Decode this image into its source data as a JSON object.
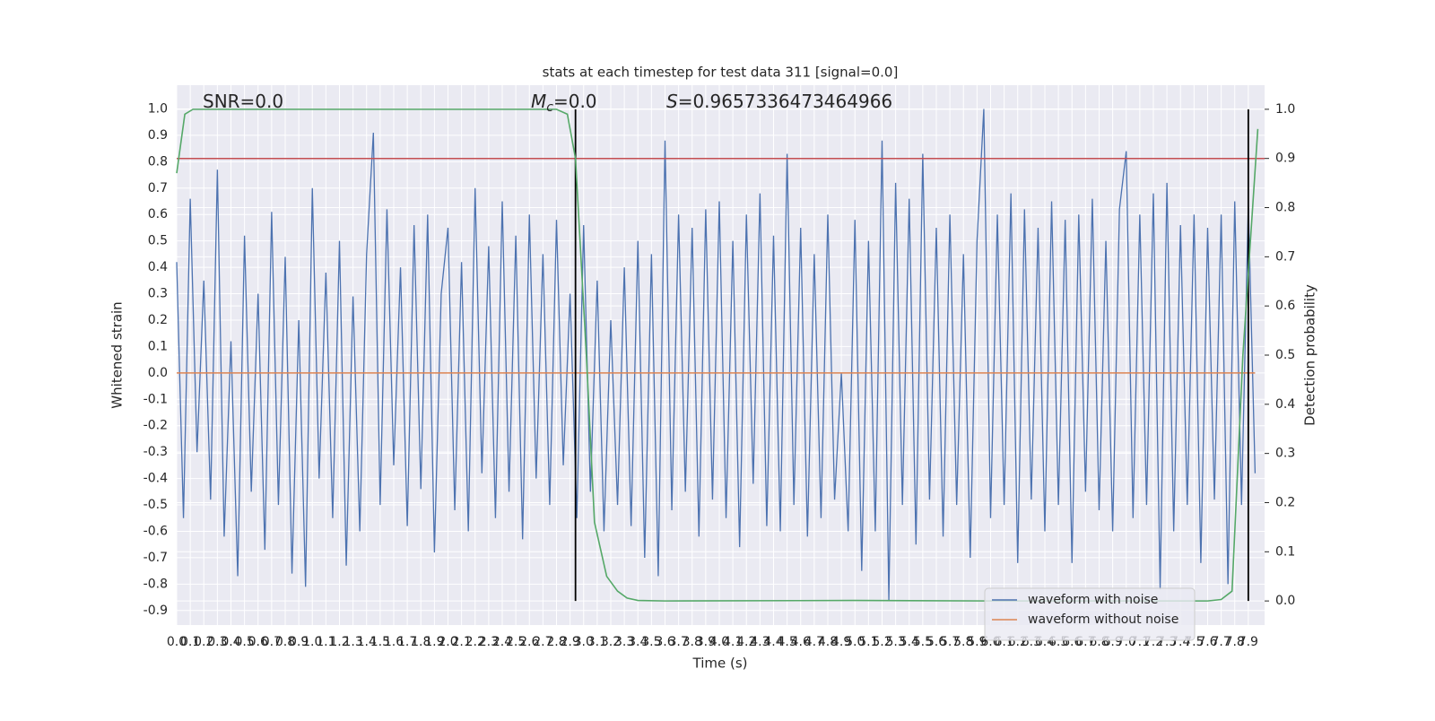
{
  "chart_data": {
    "type": "line",
    "title": "stats at each timestep for test data 311 [signal=0.0]",
    "x_label": "Time (s)",
    "y_label": "Whitened strain",
    "y2_label": "Detection probability",
    "annotations": [
      {
        "text": "SNR=0.0"
      },
      {
        "symbol": "M",
        "subscript": "c",
        "text": "=0.0"
      },
      {
        "symbol": "S",
        "text": "=0.9657336473464966"
      }
    ],
    "xlim": [
      0,
      8.02
    ],
    "ylim": [
      -0.955,
      1.09
    ],
    "y2lim": [
      -0.049,
      1.049
    ],
    "xticks": [
      {
        "value": 0,
        "label": "0.0"
      },
      0.1,
      0.2,
      0.3,
      0.4,
      0.5,
      0.6,
      0.7,
      0.8,
      0.9,
      {
        "value": 1,
        "label": "1.0"
      },
      1.1,
      1.2,
      1.3,
      1.4,
      1.5,
      1.6,
      1.7,
      1.8,
      1.9,
      {
        "value": 2,
        "label": "2.0"
      },
      2.1,
      2.2,
      2.3,
      2.4,
      2.5,
      2.6,
      2.7,
      2.8,
      2.9,
      {
        "value": 3,
        "label": "3.0"
      },
      3.1,
      3.2,
      3.3,
      3.4,
      3.5,
      3.6,
      3.7,
      3.8,
      3.9,
      {
        "value": 4,
        "label": "4.0"
      },
      4.1,
      4.2,
      4.3,
      4.4,
      4.5,
      4.6,
      4.7,
      4.8,
      4.9,
      {
        "value": 5,
        "label": "5.0"
      },
      5.1,
      5.2,
      5.3,
      5.4,
      5.5,
      5.6,
      5.7,
      5.8,
      5.9,
      {
        "value": 6,
        "label": "6.0"
      },
      6.1,
      6.2,
      6.3,
      6.4,
      6.5,
      6.6,
      6.7,
      6.8,
      6.9,
      {
        "value": 7,
        "label": "7.0"
      },
      7.1,
      7.2,
      7.3,
      7.4,
      7.5,
      7.6,
      7.7,
      7.8,
      7.9
    ],
    "yticks": [
      -0.9,
      -0.8,
      -0.7,
      -0.6,
      -0.5,
      -0.4,
      -0.3,
      -0.2,
      -0.1,
      {
        "value": 0,
        "label": "0.0"
      },
      0.1,
      0.2,
      0.3,
      0.4,
      0.5,
      0.6,
      0.7,
      0.8,
      0.9,
      {
        "value": 1,
        "label": "1.0"
      }
    ],
    "y2ticks": [
      {
        "value": 0,
        "label": "0.0"
      },
      0.1,
      0.2,
      0.3,
      0.4,
      0.5,
      0.6,
      0.7,
      0.8,
      0.9,
      {
        "value": 1,
        "label": "1.0"
      }
    ],
    "grid": true,
    "legend": "lower right",
    "series": [
      {
        "name": "waveform with noise",
        "color": "#4c72b0",
        "x": [
          0,
          0.05,
          0.1,
          0.15,
          0.2,
          0.25,
          0.3,
          0.35,
          0.4,
          0.45,
          0.5,
          0.55,
          0.6,
          0.65,
          0.7,
          0.75,
          0.8,
          0.85,
          0.9,
          0.95,
          1,
          1.05,
          1.1,
          1.15,
          1.2,
          1.25,
          1.3,
          1.35,
          1.4,
          1.45,
          1.5,
          1.55,
          1.6,
          1.65,
          1.7,
          1.75,
          1.8,
          1.85,
          1.9,
          1.95,
          2,
          2.05,
          2.1,
          2.15,
          2.2,
          2.25,
          2.3,
          2.35,
          2.4,
          2.45,
          2.5,
          2.55,
          2.6,
          2.65,
          2.7,
          2.75,
          2.8,
          2.85,
          2.9,
          2.95,
          3,
          3.05,
          3.1,
          3.15,
          3.2,
          3.25,
          3.3,
          3.35,
          3.4,
          3.45,
          3.5,
          3.55,
          3.6,
          3.65,
          3.7,
          3.75,
          3.8,
          3.85,
          3.9,
          3.95,
          4,
          4.05,
          4.1,
          4.15,
          4.2,
          4.25,
          4.3,
          4.35,
          4.4,
          4.45,
          4.5,
          4.55,
          4.6,
          4.65,
          4.7,
          4.75,
          4.8,
          4.85,
          4.9,
          4.95,
          5,
          5.05,
          5.1,
          5.15,
          5.2,
          5.25,
          5.3,
          5.35,
          5.4,
          5.45,
          5.5,
          5.55,
          5.6,
          5.65,
          5.7,
          5.75,
          5.8,
          5.85,
          5.9,
          5.95,
          6,
          6.05,
          6.1,
          6.15,
          6.2,
          6.25,
          6.3,
          6.35,
          6.4,
          6.45,
          6.5,
          6.55,
          6.6,
          6.65,
          6.7,
          6.75,
          6.8,
          6.85,
          6.9,
          6.95,
          7,
          7.05,
          7.1,
          7.15,
          7.2,
          7.25,
          7.3,
          7.35,
          7.4,
          7.45,
          7.5,
          7.55,
          7.6,
          7.65,
          7.7,
          7.75,
          7.8,
          7.85,
          7.9,
          7.95
        ],
        "values": [
          0.42,
          -0.55,
          0.66,
          -0.3,
          0.35,
          -0.48,
          0.77,
          -0.62,
          0.12,
          -0.77,
          0.52,
          -0.45,
          0.3,
          -0.67,
          0.61,
          -0.5,
          0.44,
          -0.76,
          0.2,
          -0.81,
          0.7,
          -0.4,
          0.38,
          -0.55,
          0.5,
          -0.73,
          0.29,
          -0.6,
          0.45,
          0.91,
          -0.5,
          0.62,
          -0.35,
          0.4,
          -0.58,
          0.56,
          -0.44,
          0.6,
          -0.68,
          0.3,
          0.55,
          -0.52,
          0.42,
          -0.6,
          0.7,
          -0.38,
          0.48,
          -0.55,
          0.65,
          -0.45,
          0.52,
          -0.63,
          0.6,
          -0.4,
          0.45,
          -0.5,
          0.58,
          -0.35,
          0.3,
          -0.55,
          0.56,
          -0.45,
          0.35,
          -0.6,
          0.2,
          -0.5,
          0.4,
          -0.58,
          0.5,
          -0.7,
          0.45,
          -0.77,
          0.88,
          -0.52,
          0.6,
          -0.45,
          0.55,
          -0.62,
          0.62,
          -0.48,
          0.65,
          -0.55,
          0.5,
          -0.66,
          0.6,
          -0.42,
          0.68,
          -0.58,
          0.52,
          -0.6,
          0.83,
          -0.5,
          0.55,
          -0.62,
          0.45,
          -0.55,
          0.6,
          -0.48,
          0.0,
          -0.6,
          0.58,
          -0.75,
          0.5,
          -0.6,
          0.88,
          -0.86,
          0.72,
          -0.5,
          0.66,
          -0.65,
          0.83,
          -0.48,
          0.55,
          -0.62,
          0.6,
          -0.5,
          0.45,
          -0.7,
          0.5,
          1.0,
          -0.55,
          0.6,
          -0.5,
          0.68,
          -0.72,
          0.62,
          -0.48,
          0.55,
          -0.6,
          0.65,
          -0.5,
          0.58,
          -0.72,
          0.6,
          -0.45,
          0.66,
          -0.52,
          0.5,
          -0.6,
          0.62,
          0.84,
          -0.55,
          0.6,
          -0.5,
          0.68,
          -0.82,
          0.72,
          -0.6,
          0.56,
          -0.5,
          0.6,
          -0.72,
          0.55,
          -0.48,
          0.6,
          -0.8,
          0.65,
          -0.5,
          0.64,
          -0.38
        ]
      },
      {
        "name": "waveform without noise",
        "color": "#dd8452",
        "x": [
          0,
          7.95
        ],
        "values": [
          0,
          0
        ]
      },
      {
        "color": "#55a868",
        "axis": "y2",
        "x": [
          0,
          0.06,
          0.12,
          0.5,
          1.5,
          2.5,
          2.8,
          2.88,
          2.94,
          3.02,
          3.08,
          3.17,
          3.25,
          3.32,
          3.4,
          3.6,
          5,
          6,
          7,
          7.6,
          7.7,
          7.78,
          7.86,
          7.97
        ],
        "values": [
          0.87,
          0.99,
          1.0,
          1.0,
          1.0,
          1.0,
          1.0,
          0.99,
          0.9,
          0.5,
          0.16,
          0.05,
          0.02,
          0.006,
          0.001,
          0,
          0.001,
          0,
          0,
          0,
          0.003,
          0.02,
          0.5,
          0.96
        ]
      }
    ],
    "threshold": {
      "value": 0.9,
      "axis": "y2",
      "color": "#c44e52"
    },
    "vlines": {
      "x": [
        2.94,
        7.9
      ],
      "color": "#000000"
    }
  }
}
